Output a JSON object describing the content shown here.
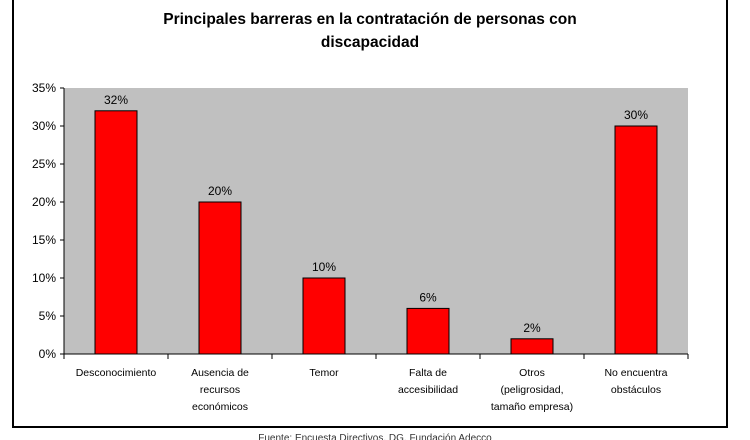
{
  "chart_data": {
    "type": "bar",
    "title_lines": [
      "Principales barreras en la contratación de personas con",
      "discapacidad"
    ],
    "categories": [
      [
        "Desconocimiento"
      ],
      [
        "Ausencia de",
        "recursos",
        "económicos"
      ],
      [
        "Temor"
      ],
      [
        "Falta de",
        "accesibilidad"
      ],
      [
        "Otros",
        "(peligrosidad,",
        "tamaño empresa)"
      ],
      [
        "No encuentra",
        "obstáculos"
      ]
    ],
    "values": [
      32,
      20,
      10,
      6,
      2,
      30
    ],
    "data_labels": [
      "32%",
      "20%",
      "10%",
      "6%",
      "2%",
      "30%"
    ],
    "ylim": [
      0,
      35
    ],
    "yticks": [
      0,
      5,
      10,
      15,
      20,
      25,
      30,
      35
    ],
    "ytick_labels": [
      "0%",
      "5%",
      "10%",
      "15%",
      "20%",
      "25%",
      "30%",
      "35%"
    ],
    "grid": false,
    "colors": {
      "bar_fill": "#ff0000",
      "bar_stroke": "#000000",
      "plot_background": "#c0c0c0"
    }
  },
  "footer": {
    "source_text": "Fuente: Encuesta Directivos. DG. Fundación Adecco"
  }
}
